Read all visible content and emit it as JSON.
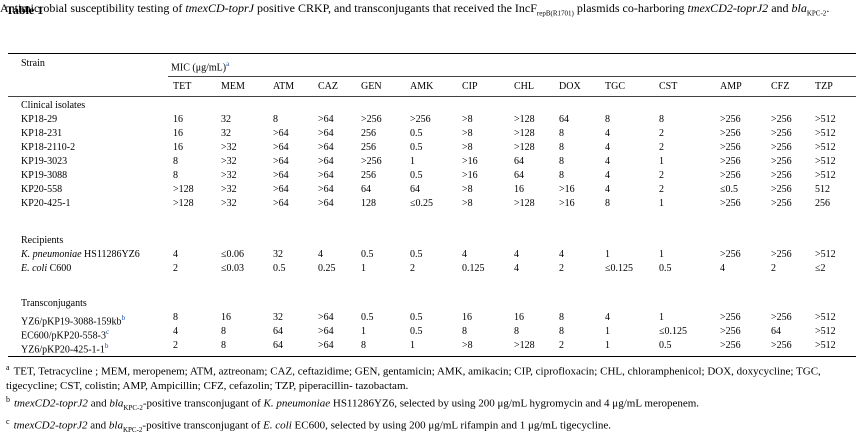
{
  "table_label": "Table 1",
  "caption": {
    "part1": "Antimicrobial susceptibility testing of ",
    "gene1": "tmexCD-toprJ",
    "part2": " positive CRKP, and transconjugants that received the IncF",
    "plasmid_sub": "repB(R1701)",
    "part3": " plasmids co-harboring ",
    "gene2": "tmexCD2-toprJ2",
    "part4": " and ",
    "gene3": "bla",
    "gene3_sub": "KPC-2",
    "part5": "."
  },
  "header": {
    "strain": "Strain",
    "mic": "MIC (μg/mL)",
    "mic_sup": "a",
    "antibiotics": [
      "TET",
      "MEM",
      "ATM",
      "CAZ",
      "GEN",
      "AMK",
      "CIP",
      "CHL",
      "DOX",
      "TGC",
      "CST",
      "AMP",
      "CFZ",
      "TZP"
    ]
  },
  "sections": [
    {
      "title": "Clinical isolates",
      "rows": [
        {
          "strain": "KP18-29",
          "values": [
            "16",
            "32",
            "8",
            ">64",
            ">256",
            ">256",
            ">8",
            ">128",
            "64",
            "8",
            "8",
            ">256",
            ">256",
            ">512"
          ]
        },
        {
          "strain": "KP18-231",
          "values": [
            "16",
            "32",
            ">64",
            ">64",
            "256",
            "0.5",
            ">8",
            ">128",
            "8",
            "4",
            "2",
            ">256",
            ">256",
            ">512"
          ]
        },
        {
          "strain": "KP18-2110-2",
          "values": [
            "16",
            ">32",
            ">64",
            ">64",
            "256",
            "0.5",
            ">8",
            ">128",
            "8",
            "4",
            "2",
            ">256",
            ">256",
            ">512"
          ]
        },
        {
          "strain": "KP19-3023",
          "values": [
            "8",
            ">32",
            ">64",
            ">64",
            ">256",
            "1",
            ">16",
            "64",
            "8",
            "4",
            "1",
            ">256",
            ">256",
            ">512"
          ]
        },
        {
          "strain": "KP19-3088",
          "values": [
            "8",
            ">32",
            ">64",
            ">64",
            "256",
            "0.5",
            ">16",
            "64",
            "8",
            "4",
            "2",
            ">256",
            ">256",
            ">512"
          ]
        },
        {
          "strain": "KP20-558",
          "values": [
            ">128",
            ">32",
            ">64",
            ">64",
            "64",
            "64",
            ">8",
            "16",
            ">16",
            "4",
            "2",
            "≤0.5",
            ">256",
            "512"
          ]
        },
        {
          "strain": "KP20-425-1",
          "values": [
            ">128",
            ">32",
            ">64",
            ">64",
            "128",
            "≤0.25",
            ">8",
            ">128",
            ">16",
            "8",
            "1",
            ">256",
            ">256",
            "256"
          ]
        }
      ]
    },
    {
      "title": "Recipients",
      "rows": [
        {
          "strain": "K. pneumoniae HS11286YZ6",
          "italic_part": "K. pneumoniae",
          "plain_part": " HS11286YZ6",
          "values": [
            "4",
            "≤0.06",
            "32",
            "4",
            "0.5",
            "0.5",
            "4",
            "4",
            "4",
            "1",
            "1",
            ">256",
            ">256",
            ">512"
          ]
        },
        {
          "strain": "E. coli C600",
          "italic_part": "E. coli",
          "plain_part": " C600",
          "values": [
            "2",
            "≤0.03",
            "0.5",
            "0.25",
            "1",
            "2",
            "0.125",
            "4",
            "2",
            "≤0.125",
            "0.5",
            "4",
            "2",
            "≤2"
          ]
        }
      ]
    },
    {
      "title": "Transconjugants",
      "rows": [
        {
          "strain": "YZ6/pKP19-3088-159kb",
          "sup": "b",
          "values": [
            "8",
            "16",
            "32",
            ">64",
            "0.5",
            "0.5",
            "16",
            "16",
            "8",
            "4",
            "1",
            ">256",
            ">256",
            ">512"
          ]
        },
        {
          "strain": "EC600/pKP20-558-3",
          "sup": "c",
          "values": [
            "4",
            "8",
            "64",
            ">64",
            "1",
            "0.5",
            "8",
            "8",
            "8",
            "1",
            "≤0.125",
            ">256",
            "64",
            ">512"
          ]
        },
        {
          "strain": "YZ6/pKP20-425-1-1",
          "sup": "b",
          "values": [
            "2",
            "8",
            "64",
            ">64",
            "8",
            "1",
            ">8",
            ">128",
            "2",
            "1",
            "0.5",
            ">256",
            ">256",
            ">512"
          ]
        }
      ]
    }
  ],
  "footnotes": [
    {
      "mark": "a",
      "text": "TET, Tetracycline ; MEM, meropenem; ATM, aztreonam; CAZ, ceftazidime; GEN, gentamicin; AMK, amikacin; CIP, ciprofloxacin; CHL, chloramphenicol; DOX, doxycycline; TGC, tigecycline; CST, colistin; AMP, Ampicillin; CFZ, cefazolin; TZP, piperacillin- tazobactam."
    },
    {
      "mark": "b",
      "gene": "tmexCD2-toprJ2",
      "and": " and ",
      "bla": "bla",
      "bla_sub": "KPC-2",
      "mid": "-positive transconjugant of ",
      "species": "K. pneumoniae",
      "rest": " HS11286YZ6, selected by using 200 μg/mL hygromycin and 4 μg/mL meropenem."
    },
    {
      "mark": "c",
      "gene": "tmexCD2-toprJ2",
      "and": " and ",
      "bla": "bla",
      "bla_sub": "KPC-2",
      "mid": "-positive transconjugant of ",
      "species": "E. coli",
      "rest": " EC600, selected by using 200 μg/mL rifampin and 1 μg/mL tigecycline."
    }
  ]
}
